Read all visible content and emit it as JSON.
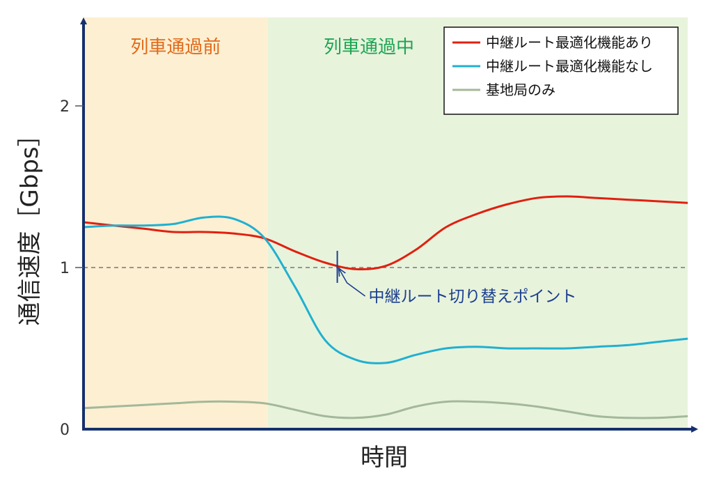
{
  "chart_data": {
    "type": "line",
    "xlabel": "時間",
    "ylabel": "通信速度［Gbps］",
    "ylim": [
      0,
      2.5
    ],
    "yticks": [
      "0",
      "1",
      "2"
    ],
    "x": [
      0,
      1,
      2,
      3,
      4,
      5,
      6,
      7,
      8,
      9,
      10,
      11,
      12,
      13,
      14,
      15,
      16,
      17,
      18,
      19,
      20
    ],
    "regions": [
      {
        "label": "列車通過前",
        "from": 0,
        "to": 6.1,
        "color": "#fdefd2",
        "label_color": "#e06a1b"
      },
      {
        "label": "列車通過中",
        "from": 6.1,
        "to": 20,
        "color": "#e8f3dc",
        "label_color": "#1aa552"
      }
    ],
    "reference_line": {
      "y": 1.0,
      "style": "dashed"
    },
    "series": [
      {
        "name": "中継ルート最適化機能あり",
        "color": "#e02010",
        "values": [
          1.28,
          1.26,
          1.24,
          1.22,
          1.22,
          1.21,
          1.18,
          1.1,
          1.03,
          0.99,
          1.01,
          1.11,
          1.25,
          1.33,
          1.39,
          1.43,
          1.44,
          1.43,
          1.42,
          1.41,
          1.4
        ]
      },
      {
        "name": "中継ルート最適化機能なし",
        "color": "#20b0d0",
        "values": [
          1.25,
          1.26,
          1.26,
          1.27,
          1.31,
          1.3,
          1.18,
          0.88,
          0.55,
          0.43,
          0.41,
          0.46,
          0.5,
          0.51,
          0.5,
          0.5,
          0.5,
          0.51,
          0.52,
          0.54,
          0.56
        ]
      },
      {
        "name": "基地局のみ",
        "color": "#a3b89a",
        "values": [
          0.13,
          0.14,
          0.15,
          0.16,
          0.17,
          0.17,
          0.16,
          0.12,
          0.08,
          0.07,
          0.09,
          0.14,
          0.17,
          0.17,
          0.16,
          0.14,
          0.11,
          0.08,
          0.07,
          0.07,
          0.08
        ]
      }
    ],
    "annotation": {
      "text": "中継ルート切り替えポイント",
      "x": 8.4,
      "y": 1.0
    },
    "legend": "top-right",
    "grid": false
  }
}
